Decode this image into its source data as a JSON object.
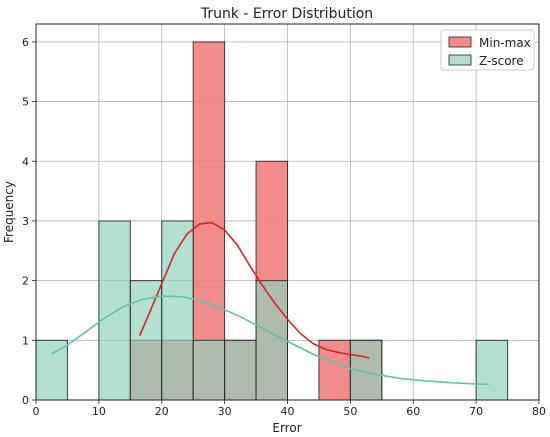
{
  "chart_data": {
    "type": "histogram",
    "title": "Trunk - Error Distribution",
    "xlabel": "Error",
    "ylabel": "Frequency",
    "xlim": [
      0,
      80
    ],
    "ylim": [
      0,
      6.3
    ],
    "xticks": [
      0,
      10,
      20,
      30,
      40,
      50,
      60,
      70,
      80
    ],
    "yticks": [
      0,
      1,
      2,
      3,
      4,
      5,
      6
    ],
    "grid": true,
    "legend_position": "top-right",
    "bin_width": 5,
    "series": [
      {
        "name": "Min-max",
        "color": "#f08080",
        "kde_color": "#d62728",
        "bins": [
          {
            "x0": 15,
            "x1": 20,
            "count": 1
          },
          {
            "x0": 20,
            "x1": 25,
            "count": 1
          },
          {
            "x0": 25,
            "x1": 30,
            "count": 6
          },
          {
            "x0": 30,
            "x1": 35,
            "count": 1
          },
          {
            "x0": 35,
            "x1": 40,
            "count": 4
          },
          {
            "x0": 45,
            "x1": 50,
            "count": 1
          },
          {
            "x0": 50,
            "x1": 55,
            "count": 1
          }
        ],
        "kde": [
          [
            16.5,
            1.08
          ],
          [
            18,
            1.45
          ],
          [
            20,
            1.95
          ],
          [
            22,
            2.45
          ],
          [
            24,
            2.78
          ],
          [
            26,
            2.95
          ],
          [
            28,
            2.97
          ],
          [
            30,
            2.85
          ],
          [
            32,
            2.6
          ],
          [
            34,
            2.25
          ],
          [
            36,
            1.92
          ],
          [
            38,
            1.62
          ],
          [
            40,
            1.35
          ],
          [
            42,
            1.12
          ],
          [
            44,
            0.95
          ],
          [
            46,
            0.85
          ],
          [
            48,
            0.8
          ],
          [
            50,
            0.76
          ],
          [
            52,
            0.73
          ],
          [
            53,
            0.7
          ]
        ]
      },
      {
        "name": "Z-score",
        "color": "#8fd1bb",
        "kde_color": "#66c2a5",
        "bins": [
          {
            "x0": 0,
            "x1": 5,
            "count": 1
          },
          {
            "x0": 10,
            "x1": 15,
            "count": 3
          },
          {
            "x0": 15,
            "x1": 20,
            "count": 2
          },
          {
            "x0": 20,
            "x1": 25,
            "count": 3
          },
          {
            "x0": 25,
            "x1": 30,
            "count": 1
          },
          {
            "x0": 30,
            "x1": 35,
            "count": 1
          },
          {
            "x0": 35,
            "x1": 40,
            "count": 2
          },
          {
            "x0": 50,
            "x1": 55,
            "count": 1
          },
          {
            "x0": 70,
            "x1": 75,
            "count": 1
          }
        ],
        "kde": [
          [
            2.5,
            0.77
          ],
          [
            5,
            0.92
          ],
          [
            8,
            1.15
          ],
          [
            11,
            1.38
          ],
          [
            14,
            1.57
          ],
          [
            17,
            1.69
          ],
          [
            20,
            1.74
          ],
          [
            23,
            1.73
          ],
          [
            26,
            1.67
          ],
          [
            29,
            1.56
          ],
          [
            32,
            1.42
          ],
          [
            35,
            1.26
          ],
          [
            38,
            1.09
          ],
          [
            41,
            0.93
          ],
          [
            44,
            0.77
          ],
          [
            47,
            0.64
          ],
          [
            50,
            0.53
          ],
          [
            54,
            0.43
          ],
          [
            58,
            0.36
          ],
          [
            62,
            0.32
          ],
          [
            66,
            0.29
          ],
          [
            70,
            0.27
          ],
          [
            72,
            0.26
          ]
        ]
      }
    ]
  }
}
